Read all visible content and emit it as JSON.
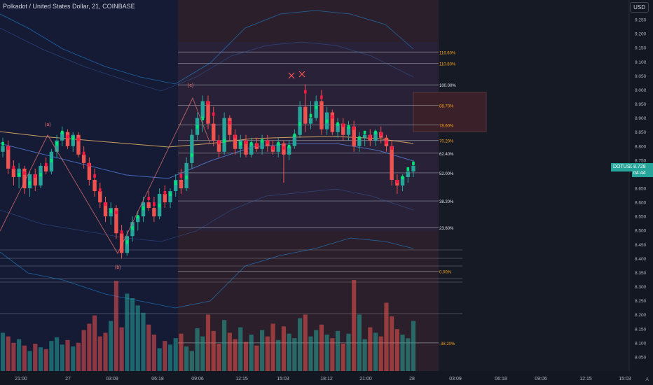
{
  "title": "Polkadot / United States Dollar, 21, COINBASE",
  "currency_button": "USD",
  "auto_label": "A",
  "price_tag": {
    "symbol": "DOTUSD",
    "price": "8.728",
    "countdown": "04:44"
  },
  "colors": {
    "background": "#131722",
    "up": "#26a69a",
    "down": "#ef5350",
    "accent_green": "#00e676",
    "accent_red": "#ff1744",
    "fib_line": "#c3c6ce",
    "fib_label": "#f7a21b",
    "ma_line": "#f5c26b",
    "band_line": "#2196f3"
  },
  "chart_data": {
    "type": "candlestick",
    "symbol": "DOTUSD",
    "exchange": "COINBASE",
    "interval": "21",
    "ylim": [
      8.0,
      9.3
    ],
    "y_ticks": [
      8.05,
      8.1,
      8.15,
      8.2,
      8.25,
      8.3,
      8.35,
      8.4,
      8.45,
      8.5,
      8.55,
      8.6,
      8.65,
      8.7,
      8.75,
      8.8,
      8.85,
      8.9,
      8.95,
      9.0,
      9.05,
      9.1,
      9.15,
      9.2,
      9.25
    ],
    "y_tick_labels": [
      "8.050",
      "8.100",
      "8.150",
      "8.200",
      "8.250",
      "8.300",
      "8.350",
      "8.400",
      "8.450",
      "8.500",
      "8.550",
      "8.600",
      "8.650",
      "8.700",
      "8.750",
      "8.800",
      "8.850",
      "8.900",
      "8.950",
      "9.000",
      "9.050",
      "9.100",
      "9.150",
      "9.200",
      "9.250"
    ],
    "x_labels": [
      "21:00",
      "27",
      "03:09",
      "06:18",
      "09:06",
      "12:15",
      "15:03",
      "18:12",
      "21:00",
      "28",
      "03:09",
      "06:18",
      "09:06",
      "12:15",
      "15:03"
    ],
    "fib_levels": [
      {
        "label": "116.60%",
        "price": 9.135
      },
      {
        "label": "110.80%",
        "price": 9.095
      },
      {
        "label": "100.00%",
        "price": 9.018
      },
      {
        "label": "88.70%",
        "price": 8.945
      },
      {
        "label": "78.60%",
        "price": 8.875
      },
      {
        "label": "70.20%",
        "price": 8.82
      },
      {
        "label": "62.40%",
        "price": 8.775
      },
      {
        "label": "52.00%",
        "price": 8.705
      },
      {
        "label": "38.20%",
        "price": 8.605
      },
      {
        "label": "23.60%",
        "price": 8.51
      },
      {
        "label": "0.00%",
        "price": 8.355
      },
      {
        "label": "-38.20%",
        "price": 8.1
      }
    ],
    "wave_labels": [
      {
        "label": "(a)",
        "price": 8.865
      },
      {
        "label": "(b)",
        "price": 8.39
      },
      {
        "label": "(c)",
        "price": 9.015
      }
    ],
    "candles": [
      [
        8.78,
        8.83,
        8.76,
        8.8
      ],
      [
        8.8,
        8.82,
        8.7,
        8.72
      ],
      [
        8.72,
        8.75,
        8.66,
        8.69
      ],
      [
        8.69,
        8.74,
        8.65,
        8.72
      ],
      [
        8.72,
        8.73,
        8.63,
        8.65
      ],
      [
        8.65,
        8.71,
        8.62,
        8.7
      ],
      [
        8.7,
        8.72,
        8.64,
        8.66
      ],
      [
        8.66,
        8.74,
        8.65,
        8.73
      ],
      [
        8.73,
        8.76,
        8.7,
        8.71
      ],
      [
        8.71,
        8.79,
        8.7,
        8.78
      ],
      [
        8.78,
        8.84,
        8.76,
        8.82
      ],
      [
        8.82,
        8.87,
        8.8,
        8.85
      ],
      [
        8.85,
        8.86,
        8.79,
        8.8
      ],
      [
        8.8,
        8.85,
        8.78,
        8.84
      ],
      [
        8.84,
        8.85,
        8.76,
        8.77
      ],
      [
        8.77,
        8.8,
        8.72,
        8.74
      ],
      [
        8.74,
        8.76,
        8.66,
        8.68
      ],
      [
        8.68,
        8.72,
        8.62,
        8.64
      ],
      [
        8.64,
        8.67,
        8.58,
        8.6
      ],
      [
        8.6,
        8.62,
        8.53,
        8.55
      ],
      [
        8.55,
        8.6,
        8.52,
        8.58
      ],
      [
        8.58,
        8.59,
        8.47,
        8.49
      ],
      [
        8.49,
        8.52,
        8.4,
        8.42
      ],
      [
        8.42,
        8.5,
        8.41,
        8.48
      ],
      [
        8.48,
        8.55,
        8.46,
        8.53
      ],
      [
        8.53,
        8.57,
        8.5,
        8.55
      ],
      [
        8.55,
        8.62,
        8.53,
        8.6
      ],
      [
        8.6,
        8.64,
        8.57,
        8.58
      ],
      [
        8.58,
        8.62,
        8.53,
        8.55
      ],
      [
        8.55,
        8.65,
        8.54,
        8.63
      ],
      [
        8.63,
        8.66,
        8.58,
        8.6
      ],
      [
        8.6,
        8.65,
        8.58,
        8.64
      ],
      [
        8.64,
        8.7,
        8.62,
        8.68
      ],
      [
        8.68,
        8.72,
        8.63,
        8.65
      ],
      [
        8.65,
        8.76,
        8.64,
        8.74
      ],
      [
        8.74,
        8.86,
        8.72,
        8.84
      ],
      [
        8.84,
        8.92,
        8.82,
        8.9
      ],
      [
        8.9,
        8.98,
        8.85,
        8.96
      ],
      [
        8.96,
        8.98,
        8.86,
        8.88
      ],
      [
        8.88,
        8.94,
        8.8,
        8.82
      ],
      [
        8.82,
        8.84,
        8.76,
        8.78
      ],
      [
        8.78,
        8.92,
        8.77,
        8.9
      ],
      [
        8.9,
        8.91,
        8.82,
        8.84
      ],
      [
        8.84,
        8.86,
        8.77,
        8.79
      ],
      [
        8.79,
        8.84,
        8.76,
        8.82
      ],
      [
        8.82,
        8.84,
        8.76,
        8.77
      ],
      [
        8.77,
        8.83,
        8.76,
        8.81
      ],
      [
        8.81,
        8.83,
        8.78,
        8.79
      ],
      [
        8.79,
        8.84,
        8.77,
        8.82
      ],
      [
        8.82,
        8.84,
        8.78,
        8.8
      ],
      [
        8.8,
        8.82,
        8.77,
        8.78
      ],
      [
        8.78,
        8.83,
        8.76,
        8.81
      ],
      [
        8.81,
        8.82,
        8.67,
        8.77
      ],
      [
        8.77,
        8.82,
        8.75,
        8.8
      ],
      [
        8.8,
        8.86,
        8.79,
        8.84
      ],
      [
        8.84,
        8.96,
        8.83,
        8.94
      ],
      [
        8.94,
        9.02,
        8.85,
        8.88
      ],
      [
        8.88,
        8.96,
        8.86,
        8.9
      ],
      [
        8.9,
        8.98,
        8.89,
        8.96
      ],
      [
        8.96,
        9.0,
        8.84,
        8.86
      ],
      [
        8.86,
        8.94,
        8.84,
        8.92
      ],
      [
        8.92,
        8.93,
        8.84,
        8.85
      ],
      [
        8.85,
        8.9,
        8.83,
        8.88
      ],
      [
        8.88,
        8.9,
        8.82,
        8.84
      ],
      [
        8.84,
        8.89,
        8.82,
        8.87
      ],
      [
        8.87,
        8.89,
        8.78,
        8.8
      ],
      [
        8.8,
        8.85,
        8.78,
        8.83
      ],
      [
        8.83,
        8.85,
        8.8,
        8.84
      ],
      [
        8.84,
        8.86,
        8.8,
        8.82
      ],
      [
        8.82,
        8.86,
        8.8,
        8.85
      ],
      [
        8.85,
        8.87,
        8.81,
        8.83
      ],
      [
        8.83,
        8.84,
        8.78,
        8.8
      ],
      [
        8.8,
        8.82,
        8.66,
        8.68
      ],
      [
        8.68,
        8.7,
        8.63,
        8.66
      ],
      [
        8.66,
        8.7,
        8.64,
        8.69
      ],
      [
        8.69,
        8.72,
        8.67,
        8.71
      ],
      [
        8.71,
        8.75,
        8.69,
        8.73
      ]
    ],
    "volumes": [
      0.42,
      0.38,
      0.31,
      0.35,
      0.28,
      0.22,
      0.3,
      0.26,
      0.24,
      0.33,
      0.37,
      0.29,
      0.34,
      0.27,
      0.31,
      0.45,
      0.52,
      0.61,
      0.38,
      0.42,
      0.55,
      0.99,
      0.48,
      0.85,
      0.8,
      0.72,
      0.64,
      0.51,
      0.4,
      0.25,
      0.33,
      0.29,
      0.36,
      0.41,
      0.27,
      0.22,
      0.47,
      0.38,
      0.62,
      0.44,
      0.3,
      0.56,
      0.42,
      0.35,
      0.48,
      0.32,
      0.4,
      0.28,
      0.45,
      0.38,
      0.52,
      0.34,
      0.49,
      0.41,
      0.36,
      0.58,
      0.62,
      0.38,
      0.45,
      0.51,
      0.4,
      0.36,
      0.44,
      0.3,
      0.41,
      1.0,
      0.62,
      0.35,
      0.48,
      0.42,
      0.38,
      0.75,
      0.6,
      0.46,
      0.4,
      0.36,
      0.55
    ]
  }
}
